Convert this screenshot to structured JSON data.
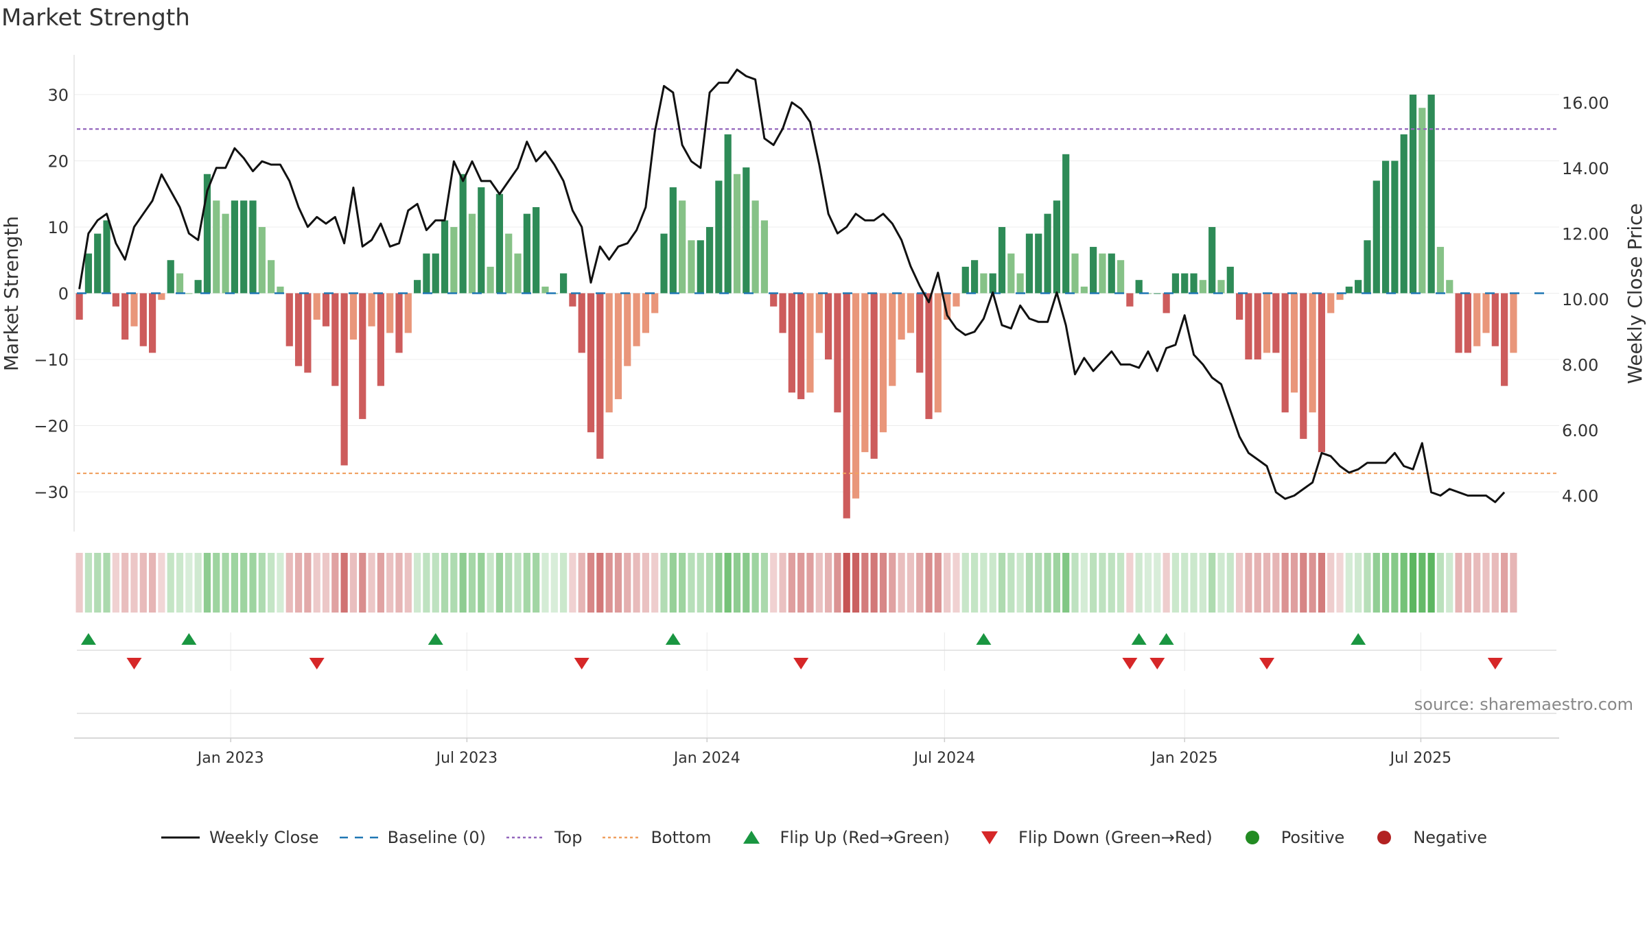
{
  "chart_data": {
    "type": "bar",
    "title": "Market Strength",
    "ylabel": "Market Strength",
    "y2label": "Weekly Close Price",
    "ylim": [
      -36,
      36
    ],
    "y2lim": [
      2.9,
      17.45
    ],
    "yticks": [
      -30,
      -20,
      -10,
      0,
      10,
      20,
      30
    ],
    "y2ticks": [
      "4.00",
      "6.00",
      "8.00",
      "10.00",
      "12.00",
      "14.00",
      "16.00"
    ],
    "x_start": "2022-09-03",
    "x_end": "2025-10-15",
    "xticks": [
      {
        "date": "2023-01-01",
        "label": "Jan 2023"
      },
      {
        "date": "2023-07-01",
        "label": "Jul 2023"
      },
      {
        "date": "2024-01-01",
        "label": "Jan 2024"
      },
      {
        "date": "2024-07-01",
        "label": "Jul 2024"
      },
      {
        "date": "2025-01-01",
        "label": "Jan 2025"
      },
      {
        "date": "2025-07-01",
        "label": "Jul 2025"
      }
    ],
    "top_line": 24.8,
    "bottom_line": -27.2,
    "weeks_start": "2022-09-07",
    "strength": [
      -4,
      6,
      9,
      11,
      -2,
      -7,
      -5,
      -8,
      -9,
      -1,
      5,
      3,
      0,
      2,
      18,
      14,
      12,
      14,
      14,
      14,
      10,
      5,
      1,
      -8,
      -11,
      -12,
      -4,
      -5,
      -14,
      -26,
      -7,
      -19,
      -5,
      -14,
      -6,
      -9,
      -6,
      2,
      6,
      6,
      11,
      10,
      18,
      12,
      16,
      4,
      15,
      9,
      6,
      12,
      13,
      1,
      0,
      3,
      -2,
      -9,
      -21,
      -25,
      -18,
      -16,
      -11,
      -8,
      -6,
      -3,
      9,
      16,
      14,
      8,
      8,
      10,
      17,
      24,
      18,
      19,
      14,
      11,
      -2,
      -6,
      -15,
      -16,
      -15,
      -6,
      -10,
      -18,
      -34,
      -31,
      -24,
      -25,
      -21,
      -14,
      -7,
      -6,
      -12,
      -19,
      -18,
      -4,
      -2,
      4,
      5,
      3,
      3,
      10,
      6,
      3,
      9,
      9,
      12,
      14,
      21,
      6,
      1,
      7,
      6,
      6,
      5,
      -2,
      2,
      0,
      0,
      -3,
      3,
      3,
      3,
      2,
      10,
      2,
      4,
      -4,
      -10,
      -10,
      -9,
      -9,
      -18,
      -15,
      -22,
      -18,
      -24,
      -3,
      -1,
      1,
      2,
      8,
      17,
      20,
      20,
      24,
      30,
      28,
      30,
      7,
      2,
      -9,
      -9,
      -8,
      -6,
      -8,
      -14,
      -9
    ],
    "close": [
      10.3,
      12.0,
      12.4,
      12.6,
      11.7,
      11.2,
      12.2,
      12.6,
      13.0,
      13.8,
      13.3,
      12.8,
      12.0,
      11.8,
      13.3,
      14.0,
      14.0,
      14.6,
      14.3,
      13.9,
      14.2,
      14.1,
      14.1,
      13.6,
      12.8,
      12.2,
      12.5,
      12.3,
      12.5,
      11.7,
      13.4,
      11.6,
      11.8,
      12.3,
      11.6,
      11.7,
      12.7,
      12.9,
      12.1,
      12.4,
      12.4,
      14.2,
      13.6,
      14.2,
      13.6,
      13.6,
      13.2,
      13.6,
      14.0,
      14.8,
      14.2,
      14.5,
      14.1,
      13.6,
      12.7,
      12.2,
      10.5,
      11.6,
      11.2,
      11.6,
      11.7,
      12.1,
      12.8,
      15.1,
      16.5,
      16.3,
      14.7,
      14.2,
      14.0,
      16.3,
      16.6,
      16.6,
      17.0,
      16.8,
      16.7,
      14.9,
      14.7,
      15.2,
      16.0,
      15.8,
      15.4,
      14.1,
      12.6,
      12.0,
      12.2,
      12.6,
      12.4,
      12.4,
      12.6,
      12.3,
      11.8,
      11.0,
      10.4,
      9.9,
      10.8,
      9.5,
      9.1,
      8.9,
      9.0,
      9.4,
      10.2,
      9.2,
      9.1,
      9.8,
      9.4,
      9.3,
      9.3,
      10.2,
      9.2,
      7.7,
      8.2,
      7.8,
      8.1,
      8.4,
      8.0,
      8.0,
      7.9,
      8.4,
      7.8,
      8.5,
      8.6,
      9.5,
      8.3,
      8.0,
      7.6,
      7.4,
      6.6,
      5.8,
      5.3,
      5.1,
      4.9,
      4.1,
      3.9,
      4.0,
      4.2,
      4.4,
      5.3,
      5.2,
      4.9,
      4.7,
      4.8,
      5.0,
      5.0,
      5.0,
      5.3,
      4.9,
      4.8,
      5.6,
      4.1,
      4.0,
      4.2,
      4.1,
      4.0,
      4.0,
      4.0,
      3.8,
      4.1
    ],
    "flip_up_dates": [
      "2022-09-14",
      "2022-11-30",
      "2023-06-07",
      "2023-12-06",
      "2024-07-31",
      "2024-11-27",
      "2024-12-18",
      "2025-05-14"
    ],
    "flip_down_dates": [
      "2022-10-19",
      "2023-03-08",
      "2023-09-27",
      "2024-03-13",
      "2024-11-20",
      "2024-12-11",
      "2025-03-05",
      "2025-08-27"
    ],
    "colors": {
      "strong_green": "#2e8b57",
      "light_green": "#86c287",
      "strong_red": "#cd5c5c",
      "light_red": "#e9967a",
      "close_line": "#111111",
      "baseline": "#1f77b4",
      "top": "#9467bd",
      "bottom": "#f0a060",
      "flip_up": "#1a9641",
      "flip_down": "#d62728",
      "positive": "#228b22",
      "negative": "#b22222"
    }
  },
  "legend": {
    "weekly_close": "Weekly Close",
    "baseline": "Baseline (0)",
    "top": "Top",
    "bottom": "Bottom",
    "flip_up": "Flip Up (Red→Green)",
    "flip_down": "Flip Down (Green→Red)",
    "positive": "Positive",
    "negative": "Negative"
  },
  "source": "source: sharemaestro.com"
}
